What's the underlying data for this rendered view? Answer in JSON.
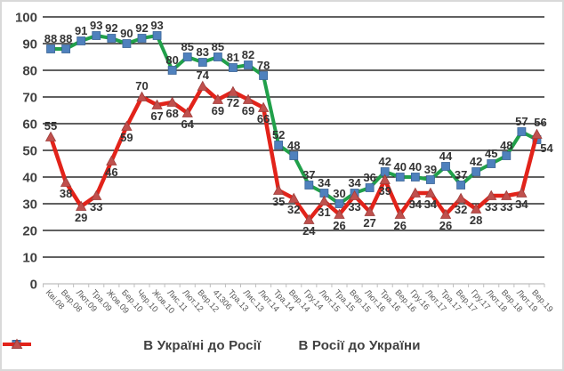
{
  "chart_data": {
    "type": "line",
    "title": "",
    "categories": [
      "Кві.08",
      "Вер.08",
      "Лют.09",
      "Тра.09",
      "Жов.09",
      "Бер.10",
      "Чер.10",
      "Жов.10",
      "Лис.11",
      "Лют.12",
      "Вер.12",
      "41306",
      "Тра.13",
      "Лис.13",
      "Лют.14",
      "Тра.14",
      "Вер.14",
      "Гру.14",
      "Лют.15",
      "Тра.15",
      "Вер.15",
      "Лют.16",
      "Тра.16",
      "Вер.16",
      "Гру.16",
      "Лют.17",
      "Тра.17",
      "Вер.17",
      "Гру.17",
      "Лют.18",
      "Вер.18",
      "Лют.19",
      "Вер.19"
    ],
    "series": [
      {
        "name": "В Україні до Росії",
        "line_color": "#21a04a",
        "marker": "square",
        "marker_color": "#4f81bd",
        "marker_edge_color": "#3a6496",
        "values": [
          88,
          88,
          91,
          93,
          92,
          90,
          92,
          93,
          80,
          85,
          83,
          85,
          81,
          82,
          78,
          52,
          48,
          37,
          34,
          30,
          34,
          36,
          42,
          40,
          40,
          39,
          44,
          37,
          42,
          45,
          48,
          57,
          54
        ]
      },
      {
        "name": "В Росії до України",
        "line_color": "#e2231a",
        "marker": "triangle",
        "marker_color": "#c0504d",
        "marker_edge_color": "#9e3f3d",
        "values": [
          55,
          38,
          29,
          33,
          46,
          59,
          70,
          67,
          68,
          64,
          74,
          69,
          72,
          69,
          66,
          35,
          32,
          24,
          31,
          26,
          33,
          27,
          39,
          26,
          34,
          34,
          26,
          32,
          28,
          33,
          33,
          34,
          56
        ]
      }
    ],
    "ylim": [
      0,
      100
    ],
    "ytick_step": 10,
    "yticks": [
      "0",
      "10",
      "20",
      "30",
      "40",
      "50",
      "60",
      "70",
      "80",
      "90",
      "100"
    ],
    "grid": "horizontal",
    "gridline_color": "#000000",
    "axis_line_color": "#bfbfbf",
    "ytick_label_color": "#404040",
    "xtick_label_color": "#595959",
    "data_label_color": "#333333",
    "legend_position": "bottom"
  }
}
